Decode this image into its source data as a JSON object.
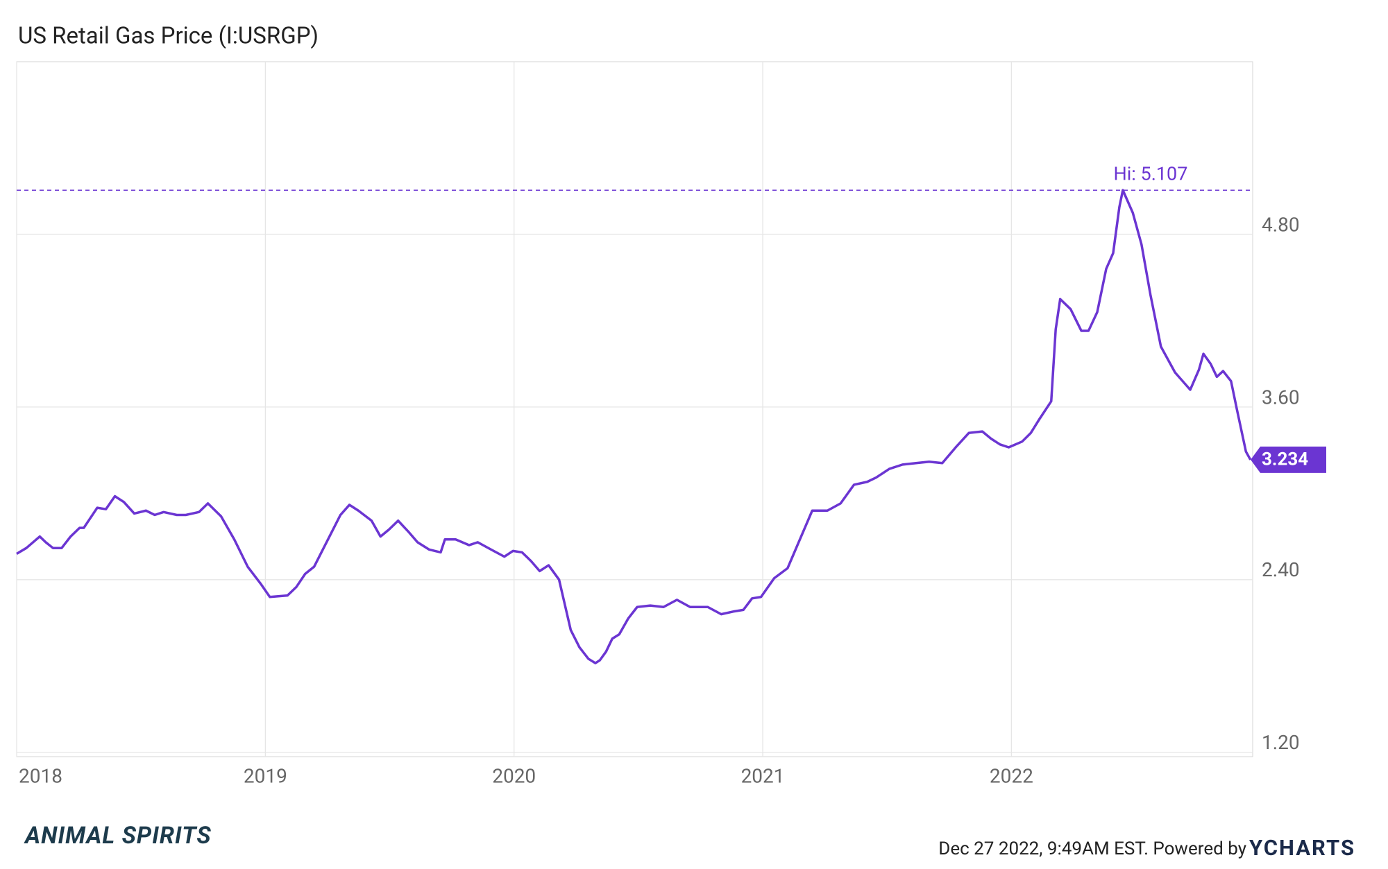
{
  "chart_data": {
    "type": "line",
    "title": "US Retail Gas Price (I:USRGP)",
    "x": [
      2018.0,
      2018.039,
      2018.093,
      2018.117,
      2018.146,
      2018.181,
      2018.217,
      2018.253,
      2018.27,
      2018.324,
      2018.359,
      2018.395,
      2018.431,
      2018.473,
      2018.52,
      2018.555,
      2018.591,
      2018.644,
      2018.68,
      2018.733,
      2018.769,
      2018.822,
      2018.875,
      2018.929,
      2018.982,
      2019.018,
      2019.089,
      2019.125,
      2019.16,
      2019.196,
      2019.249,
      2019.302,
      2019.338,
      2019.374,
      2019.427,
      2019.463,
      2019.498,
      2019.534,
      2019.577,
      2019.612,
      2019.658,
      2019.705,
      2019.722,
      2019.765,
      2019.819,
      2019.854,
      2019.907,
      2019.961,
      2019.996,
      2020.032,
      2020.068,
      2020.103,
      2020.139,
      2020.181,
      2020.228,
      2020.263,
      2020.299,
      2020.327,
      2020.345,
      2020.37,
      2020.395,
      2020.423,
      2020.459,
      2020.495,
      2020.548,
      2020.601,
      2020.655,
      2020.708,
      2020.779,
      2020.833,
      2020.886,
      2020.922,
      2020.957,
      2020.993,
      2021.046,
      2021.1,
      2021.142,
      2021.199,
      2021.26,
      2021.313,
      2021.367,
      2021.42,
      2021.456,
      2021.509,
      2021.562,
      2021.616,
      2021.669,
      2021.722,
      2021.776,
      2021.829,
      2021.883,
      2021.918,
      2021.954,
      2021.989,
      2022.043,
      2022.078,
      2022.114,
      2022.16,
      2022.178,
      2022.196,
      2022.238,
      2022.281,
      2022.31,
      2022.345,
      2022.381,
      2022.409,
      2022.434,
      2022.448,
      2022.488,
      2022.523,
      2022.559,
      2022.601,
      2022.658,
      2022.719,
      2022.754,
      2022.772,
      2022.801,
      2022.826,
      2022.851,
      2022.883,
      2022.907,
      2022.943,
      2022.961
    ],
    "series": [
      {
        "color": "#6b35d2",
        "values": [
          2.58,
          2.62,
          2.7,
          2.66,
          2.62,
          2.62,
          2.7,
          2.76,
          2.76,
          2.9,
          2.89,
          2.98,
          2.94,
          2.86,
          2.88,
          2.85,
          2.87,
          2.85,
          2.85,
          2.87,
          2.93,
          2.84,
          2.68,
          2.49,
          2.37,
          2.28,
          2.29,
          2.35,
          2.44,
          2.49,
          2.67,
          2.85,
          2.92,
          2.88,
          2.81,
          2.7,
          2.75,
          2.81,
          2.73,
          2.66,
          2.61,
          2.59,
          2.68,
          2.68,
          2.64,
          2.66,
          2.61,
          2.56,
          2.6,
          2.59,
          2.53,
          2.46,
          2.5,
          2.4,
          2.05,
          1.93,
          1.85,
          1.82,
          1.84,
          1.9,
          1.99,
          2.02,
          2.13,
          2.21,
          2.22,
          2.21,
          2.26,
          2.21,
          2.21,
          2.16,
          2.18,
          2.19,
          2.27,
          2.28,
          2.41,
          2.48,
          2.65,
          2.88,
          2.88,
          2.93,
          3.06,
          3.08,
          3.11,
          3.17,
          3.2,
          3.21,
          3.22,
          3.21,
          3.32,
          3.42,
          3.43,
          3.38,
          3.34,
          3.32,
          3.36,
          3.42,
          3.52,
          3.64,
          4.14,
          4.35,
          4.28,
          4.13,
          4.13,
          4.26,
          4.56,
          4.67,
          4.99,
          5.107,
          4.95,
          4.73,
          4.38,
          4.02,
          3.84,
          3.72,
          3.86,
          3.97,
          3.9,
          3.81,
          3.85,
          3.78,
          3.58,
          3.29,
          3.234
        ]
      }
    ],
    "xlim": [
      2018,
      2022.97
    ],
    "xticks": [
      2018,
      2019,
      2020,
      2021,
      2022
    ],
    "ylim": [
      1.17,
      6.0
    ],
    "yticks": [
      {
        "value": 1.2,
        "label": "1.20"
      },
      {
        "value": 2.4,
        "label": "2.40"
      },
      {
        "value": 3.6,
        "label": "3.60"
      },
      {
        "value": 4.8,
        "label": "4.80"
      }
    ],
    "grid": true,
    "annotations": [
      {
        "value": 5.107,
        "label": "Hi: 5.107"
      }
    ],
    "last_value_tag": true
  },
  "footer": {
    "logo": "ANIMAL SPIRITS",
    "timestamp": "Dec 27 2022, 9:49AM EST. Powered by",
    "brand": "YCHARTS"
  }
}
